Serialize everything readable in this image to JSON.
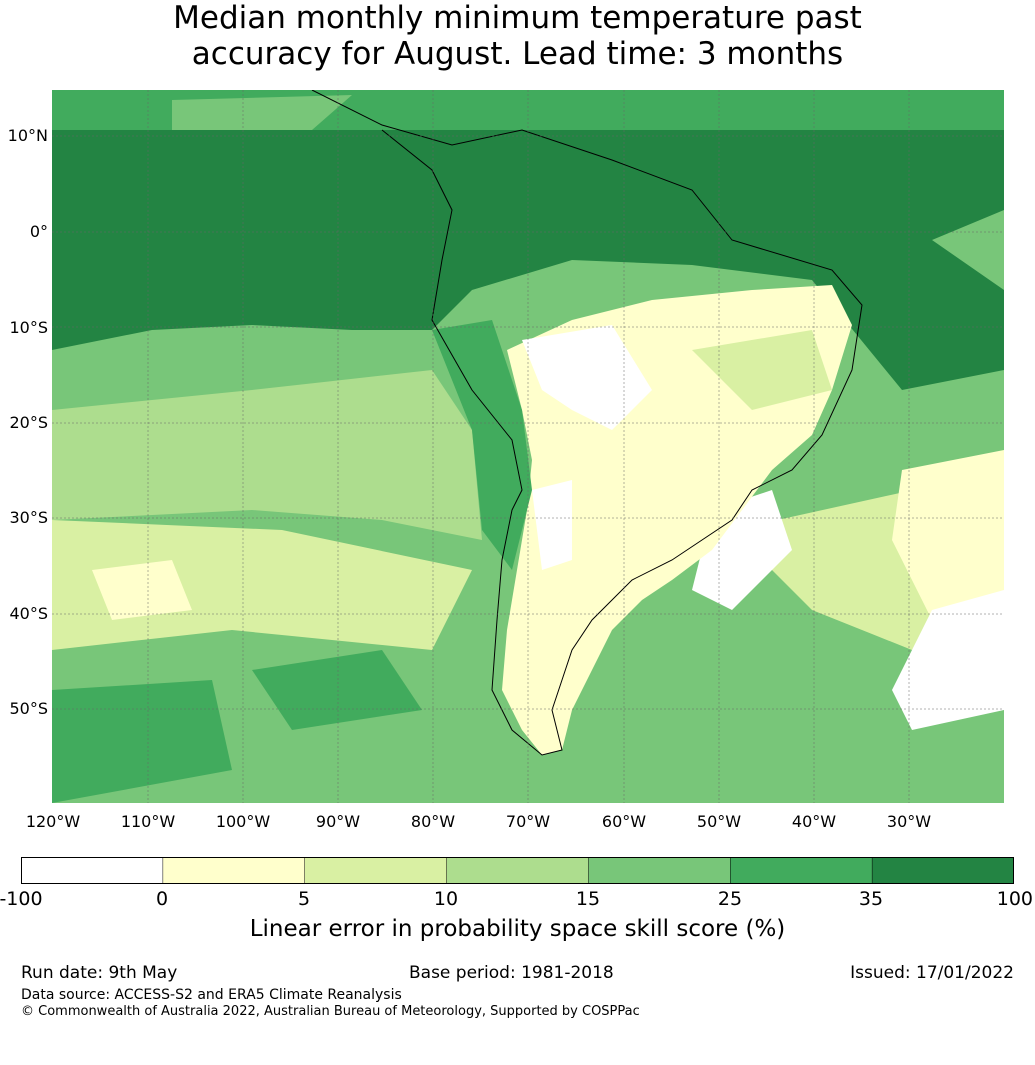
{
  "title": {
    "line1": "Median monthly minimum temperature past",
    "line2": "accuracy for August. Lead time: 3 months"
  },
  "map": {
    "lat_labels": [
      "10°N",
      "0°",
      "10°S",
      "20°S",
      "30°S",
      "40°S",
      "50°S"
    ],
    "lon_labels": [
      "120°W",
      "110°W",
      "100°W",
      "90°W",
      "80°W",
      "70°W",
      "60°W",
      "50°W",
      "40°W",
      "30°W"
    ]
  },
  "colorbar": {
    "ticks": [
      "-100",
      "0",
      "5",
      "10",
      "15",
      "25",
      "35",
      "100"
    ],
    "colors": [
      "#ffffff",
      "#ffffcc",
      "#d9f0a3",
      "#addd8e",
      "#78c679",
      "#41ab5d",
      "#238443"
    ],
    "label": "Linear error in probability space skill score (%)"
  },
  "footer": {
    "run_date": "Run date: 9th May",
    "base_period": "Base period: 1981-2018",
    "issued": "Issued: 17/01/2022",
    "data_source": "Data source: ACCESS-S2 and ERA5 Climate Reanalysis",
    "copyright": "© Commonwealth of Australia 2022, Australian Bureau of Meteorology, Supported by COSPPac"
  }
}
